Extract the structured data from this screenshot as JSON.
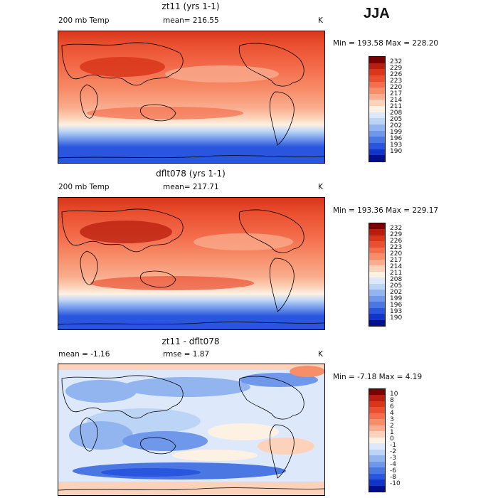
{
  "season_label": "JJA",
  "panels": [
    {
      "title": "zt11 (yrs 1-1)",
      "left_label": "200 mb Temp",
      "center_label": "mean= 216.55",
      "units": "K",
      "minmax": "Min = 193.58 Max = 228.20",
      "colorbar": {
        "labels": [
          "232",
          "229",
          "226",
          "223",
          "220",
          "217",
          "214",
          "211",
          "208",
          "205",
          "202",
          "199",
          "196",
          "193",
          "190"
        ],
        "colors": [
          "#7a0000",
          "#b81d0e",
          "#d8361a",
          "#ea5030",
          "#f46d4c",
          "#f78e6a",
          "#f9ad8e",
          "#fcd3ba",
          "#fdf1e4",
          "#dde9fb",
          "#bcd4f5",
          "#93b5ef",
          "#6f97ea",
          "#4b77e3",
          "#2a55de",
          "#1035c8",
          "#000f8c"
        ]
      }
    },
    {
      "title": "dflt078 (yrs 1-1)",
      "left_label": "200 mb Temp",
      "center_label": "mean= 217.71",
      "units": "K",
      "minmax": "Min = 193.36 Max = 229.17",
      "colorbar": {
        "labels": [
          "232",
          "229",
          "226",
          "223",
          "220",
          "217",
          "214",
          "211",
          "208",
          "205",
          "202",
          "199",
          "196",
          "193",
          "190"
        ],
        "colors": [
          "#7a0000",
          "#b81d0e",
          "#d8361a",
          "#ea5030",
          "#f46d4c",
          "#f78e6a",
          "#f9ad8e",
          "#fcd3ba",
          "#fdf1e4",
          "#dde9fb",
          "#bcd4f5",
          "#93b5ef",
          "#6f97ea",
          "#4b77e3",
          "#2a55de",
          "#1035c8",
          "#000f8c"
        ]
      }
    },
    {
      "title": "zt11 - dflt078",
      "left_label": "mean = -1.16",
      "center_label": "rmse = 1.87",
      "units": "K",
      "minmax": "Min = -7.18 Max = 4.19",
      "colorbar": {
        "labels": [
          "10",
          "8",
          "6",
          "4",
          "3",
          "2",
          "1",
          "0",
          "-1",
          "-2",
          "-3",
          "-4",
          "-6",
          "-8",
          "-10"
        ],
        "colors": [
          "#7a0000",
          "#b81d0e",
          "#d8361a",
          "#ea5030",
          "#f46d4c",
          "#f78e6a",
          "#f9ad8e",
          "#fcd3ba",
          "#fdf1e4",
          "#dde9fb",
          "#bcd4f5",
          "#93b5ef",
          "#6f97ea",
          "#4b77e3",
          "#2a55de",
          "#1035c8",
          "#000f8c"
        ]
      }
    }
  ]
}
